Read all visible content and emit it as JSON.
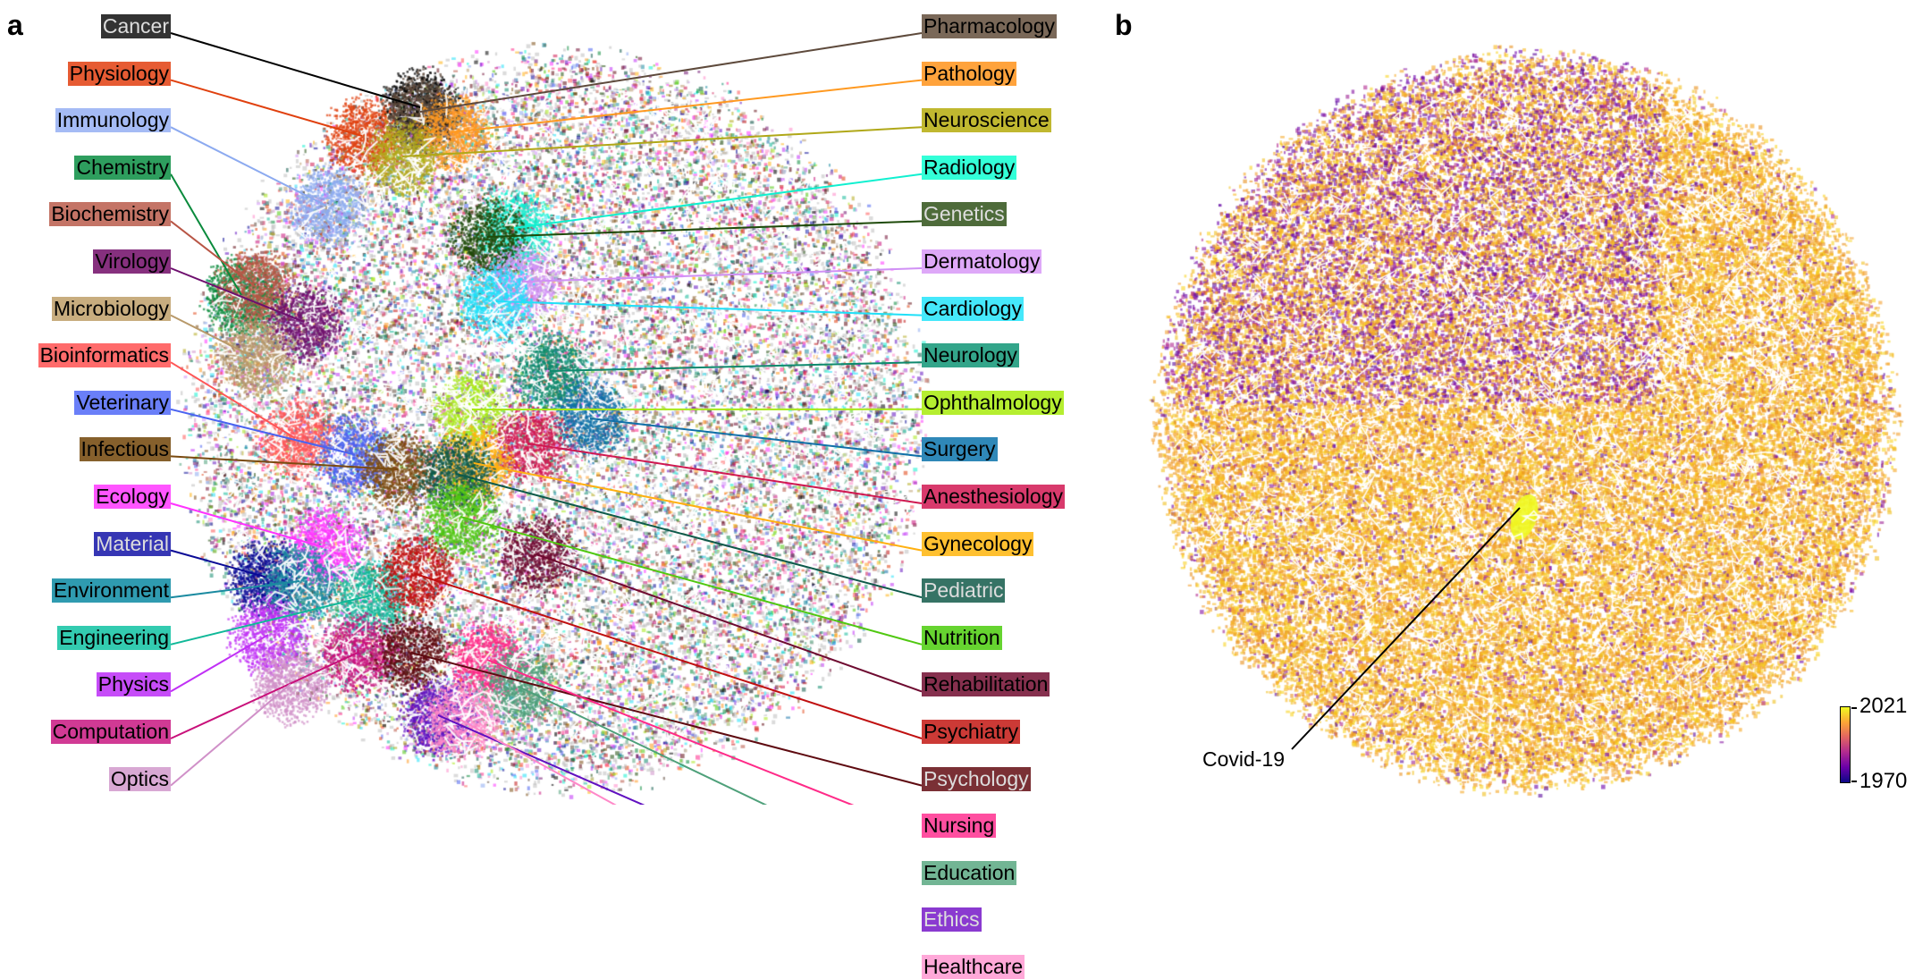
{
  "panels": {
    "a": {
      "letter": "a",
      "description": "Embedding map colored by field label",
      "left_labels": [
        {
          "text": "Cancer",
          "bg": "#333333",
          "fg": "#dddddd",
          "line": "#000000",
          "target": [
            470,
            120
          ]
        },
        {
          "text": "Physiology",
          "bg": "#e65b33",
          "fg": "#000000",
          "line": "#e0400e",
          "target": [
            405,
            152
          ]
        },
        {
          "text": "Immunology",
          "bg": "#a5bbf5",
          "fg": "#000000",
          "line": "#8caaf0",
          "target": [
            365,
            230
          ]
        },
        {
          "text": "Chemistry",
          "bg": "#2e9e5e",
          "fg": "#000000",
          "line": "#0a8a3c",
          "target": [
            270,
            330
          ]
        },
        {
          "text": "Biochemistry",
          "bg": "#c47466",
          "fg": "#000000",
          "line": "#b85545",
          "target": [
            285,
            320
          ]
        },
        {
          "text": "Virology",
          "bg": "#86307e",
          "fg": "#000000",
          "line": "#6e0f6e",
          "target": [
            340,
            360
          ]
        },
        {
          "text": "Microbiology",
          "bg": "#c8ad7f",
          "fg": "#000000",
          "line": "#b8996a",
          "target": [
            285,
            400
          ]
        },
        {
          "text": "Bioinformatics",
          "bg": "#ff6b6b",
          "fg": "#000000",
          "line": "#ff5555",
          "target": [
            330,
            490
          ]
        },
        {
          "text": "Veterinary",
          "bg": "#6a7ff8",
          "fg": "#000000",
          "line": "#4a63f0",
          "target": [
            395,
            508
          ]
        },
        {
          "text": "Infectious",
          "bg": "#86602c",
          "fg": "#000000",
          "line": "#7a4a10",
          "target": [
            445,
            525
          ]
        },
        {
          "text": "Ecology",
          "bg": "#ff55ff",
          "fg": "#000000",
          "line": "#ff33ff",
          "target": [
            362,
            612
          ]
        },
        {
          "text": "Material",
          "bg": "#3636b4",
          "fg": "#dddddd",
          "line": "#0a0a96",
          "target": [
            296,
            645
          ]
        },
        {
          "text": "Environment",
          "bg": "#2f9bb0",
          "fg": "#000000",
          "line": "#1a8aa0",
          "target": [
            335,
            650
          ]
        },
        {
          "text": "Engineering",
          "bg": "#33cbb0",
          "fg": "#000000",
          "line": "#10b898",
          "target": [
            415,
            666
          ]
        },
        {
          "text": "Physics",
          "bg": "#c64cf8",
          "fg": "#000000",
          "line": "#c030f5",
          "target": [
            300,
            710
          ]
        },
        {
          "text": "Computation",
          "bg": "#d13a94",
          "fg": "#000000",
          "line": "#c8107a",
          "target": [
            400,
            730
          ]
        },
        {
          "text": "Optics",
          "bg": "#d8a8d3",
          "fg": "#000000",
          "line": "#d090c8",
          "target": [
            325,
            765
          ]
        }
      ],
      "right_labels": [
        {
          "text": "Pharmacology",
          "bg": "#7a6858",
          "fg": "#000000",
          "line": "#5e4a3c",
          "target": [
            470,
            125
          ]
        },
        {
          "text": "Pathology",
          "bg": "#ffa33c",
          "fg": "#000000",
          "line": "#ff9920",
          "target": [
            505,
            148
          ]
        },
        {
          "text": "Neuroscience",
          "bg": "#c0b830",
          "fg": "#000000",
          "line": "#b0a818",
          "target": [
            450,
            175
          ]
        },
        {
          "text": "Radiology",
          "bg": "#33ffd8",
          "fg": "#000000",
          "line": "#10f0d0",
          "target": [
            575,
            255
          ]
        },
        {
          "text": "Genetics",
          "bg": "#4e6b3a",
          "fg": "#dddddd",
          "line": "#1e4a0a",
          "target": [
            545,
            265
          ]
        },
        {
          "text": "Dermatology",
          "bg": "#dea8f8",
          "fg": "#000000",
          "line": "#d090f5",
          "target": [
            585,
            315
          ]
        },
        {
          "text": "Cardiology",
          "bg": "#45e8fb",
          "fg": "#000000",
          "line": "#20e0f8",
          "target": [
            555,
            337
          ]
        },
        {
          "text": "Neurology",
          "bg": "#33a58a",
          "fg": "#000000",
          "line": "#0e8a6e",
          "target": [
            615,
            415
          ]
        },
        {
          "text": "Ophthalmology",
          "bg": "#b5ee30",
          "fg": "#000000",
          "line": "#a8e818",
          "target": [
            528,
            458
          ]
        },
        {
          "text": "Surgery",
          "bg": "#2f88b8",
          "fg": "#000000",
          "line": "#1070a8",
          "target": [
            660,
            468
          ]
        },
        {
          "text": "Anesthesiology",
          "bg": "#d83a6c",
          "fg": "#000000",
          "line": "#d01850",
          "target": [
            590,
            496
          ]
        },
        {
          "text": "Gynecology",
          "bg": "#ffc030",
          "fg": "#000000",
          "line": "#ffb010",
          "target": [
            530,
            518
          ]
        },
        {
          "text": "Pediatric",
          "bg": "#367365",
          "fg": "#dddddd",
          "line": "#0e5a4a",
          "target": [
            510,
            530
          ]
        },
        {
          "text": "Nutrition",
          "bg": "#66d430",
          "fg": "#000000",
          "line": "#50c810",
          "target": [
            515,
            578
          ]
        },
        {
          "text": "Rehabilitation",
          "bg": "#86304e",
          "fg": "#000000",
          "line": "#6e0a30",
          "target": [
            600,
            620
          ]
        },
        {
          "text": "Psychiatry",
          "bg": "#cc3a36",
          "fg": "#000000",
          "line": "#c01010",
          "target": [
            465,
            642
          ]
        },
        {
          "text": "Psychology",
          "bg": "#7a3035",
          "fg": "#dddddd",
          "line": "#5e0a10",
          "target": [
            460,
            730
          ]
        },
        {
          "text": "Nursing",
          "bg": "#ff4fa0",
          "fg": "#000000",
          "line": "#ff2a88",
          "target": [
            545,
            738
          ]
        },
        {
          "text": "Education",
          "bg": "#72b594",
          "fg": "#000000",
          "line": "#4ea07a",
          "target": [
            580,
            768
          ]
        },
        {
          "text": "Ethics",
          "bg": "#8a3ad0",
          "fg": "#dddddd",
          "line": "#6010c0",
          "target": [
            490,
            800
          ]
        },
        {
          "text": "Healthcare",
          "bg": "#ffa8d8",
          "fg": "#000000",
          "line": "#ff88c8",
          "target": [
            515,
            805
          ]
        }
      ]
    },
    "b": {
      "letter": "b",
      "description": "Same embedding colored by publication year",
      "annotation": {
        "text": "Covid-19",
        "line": "#000000"
      },
      "colorbar": {
        "min_label": "1970",
        "max_label": "2021",
        "min": 1970,
        "max": 2021,
        "colormap": "plasma",
        "stops": [
          "#0d0887",
          "#6a00a8",
          "#b12a90",
          "#e16462",
          "#fca636",
          "#f0f921"
        ]
      }
    }
  }
}
